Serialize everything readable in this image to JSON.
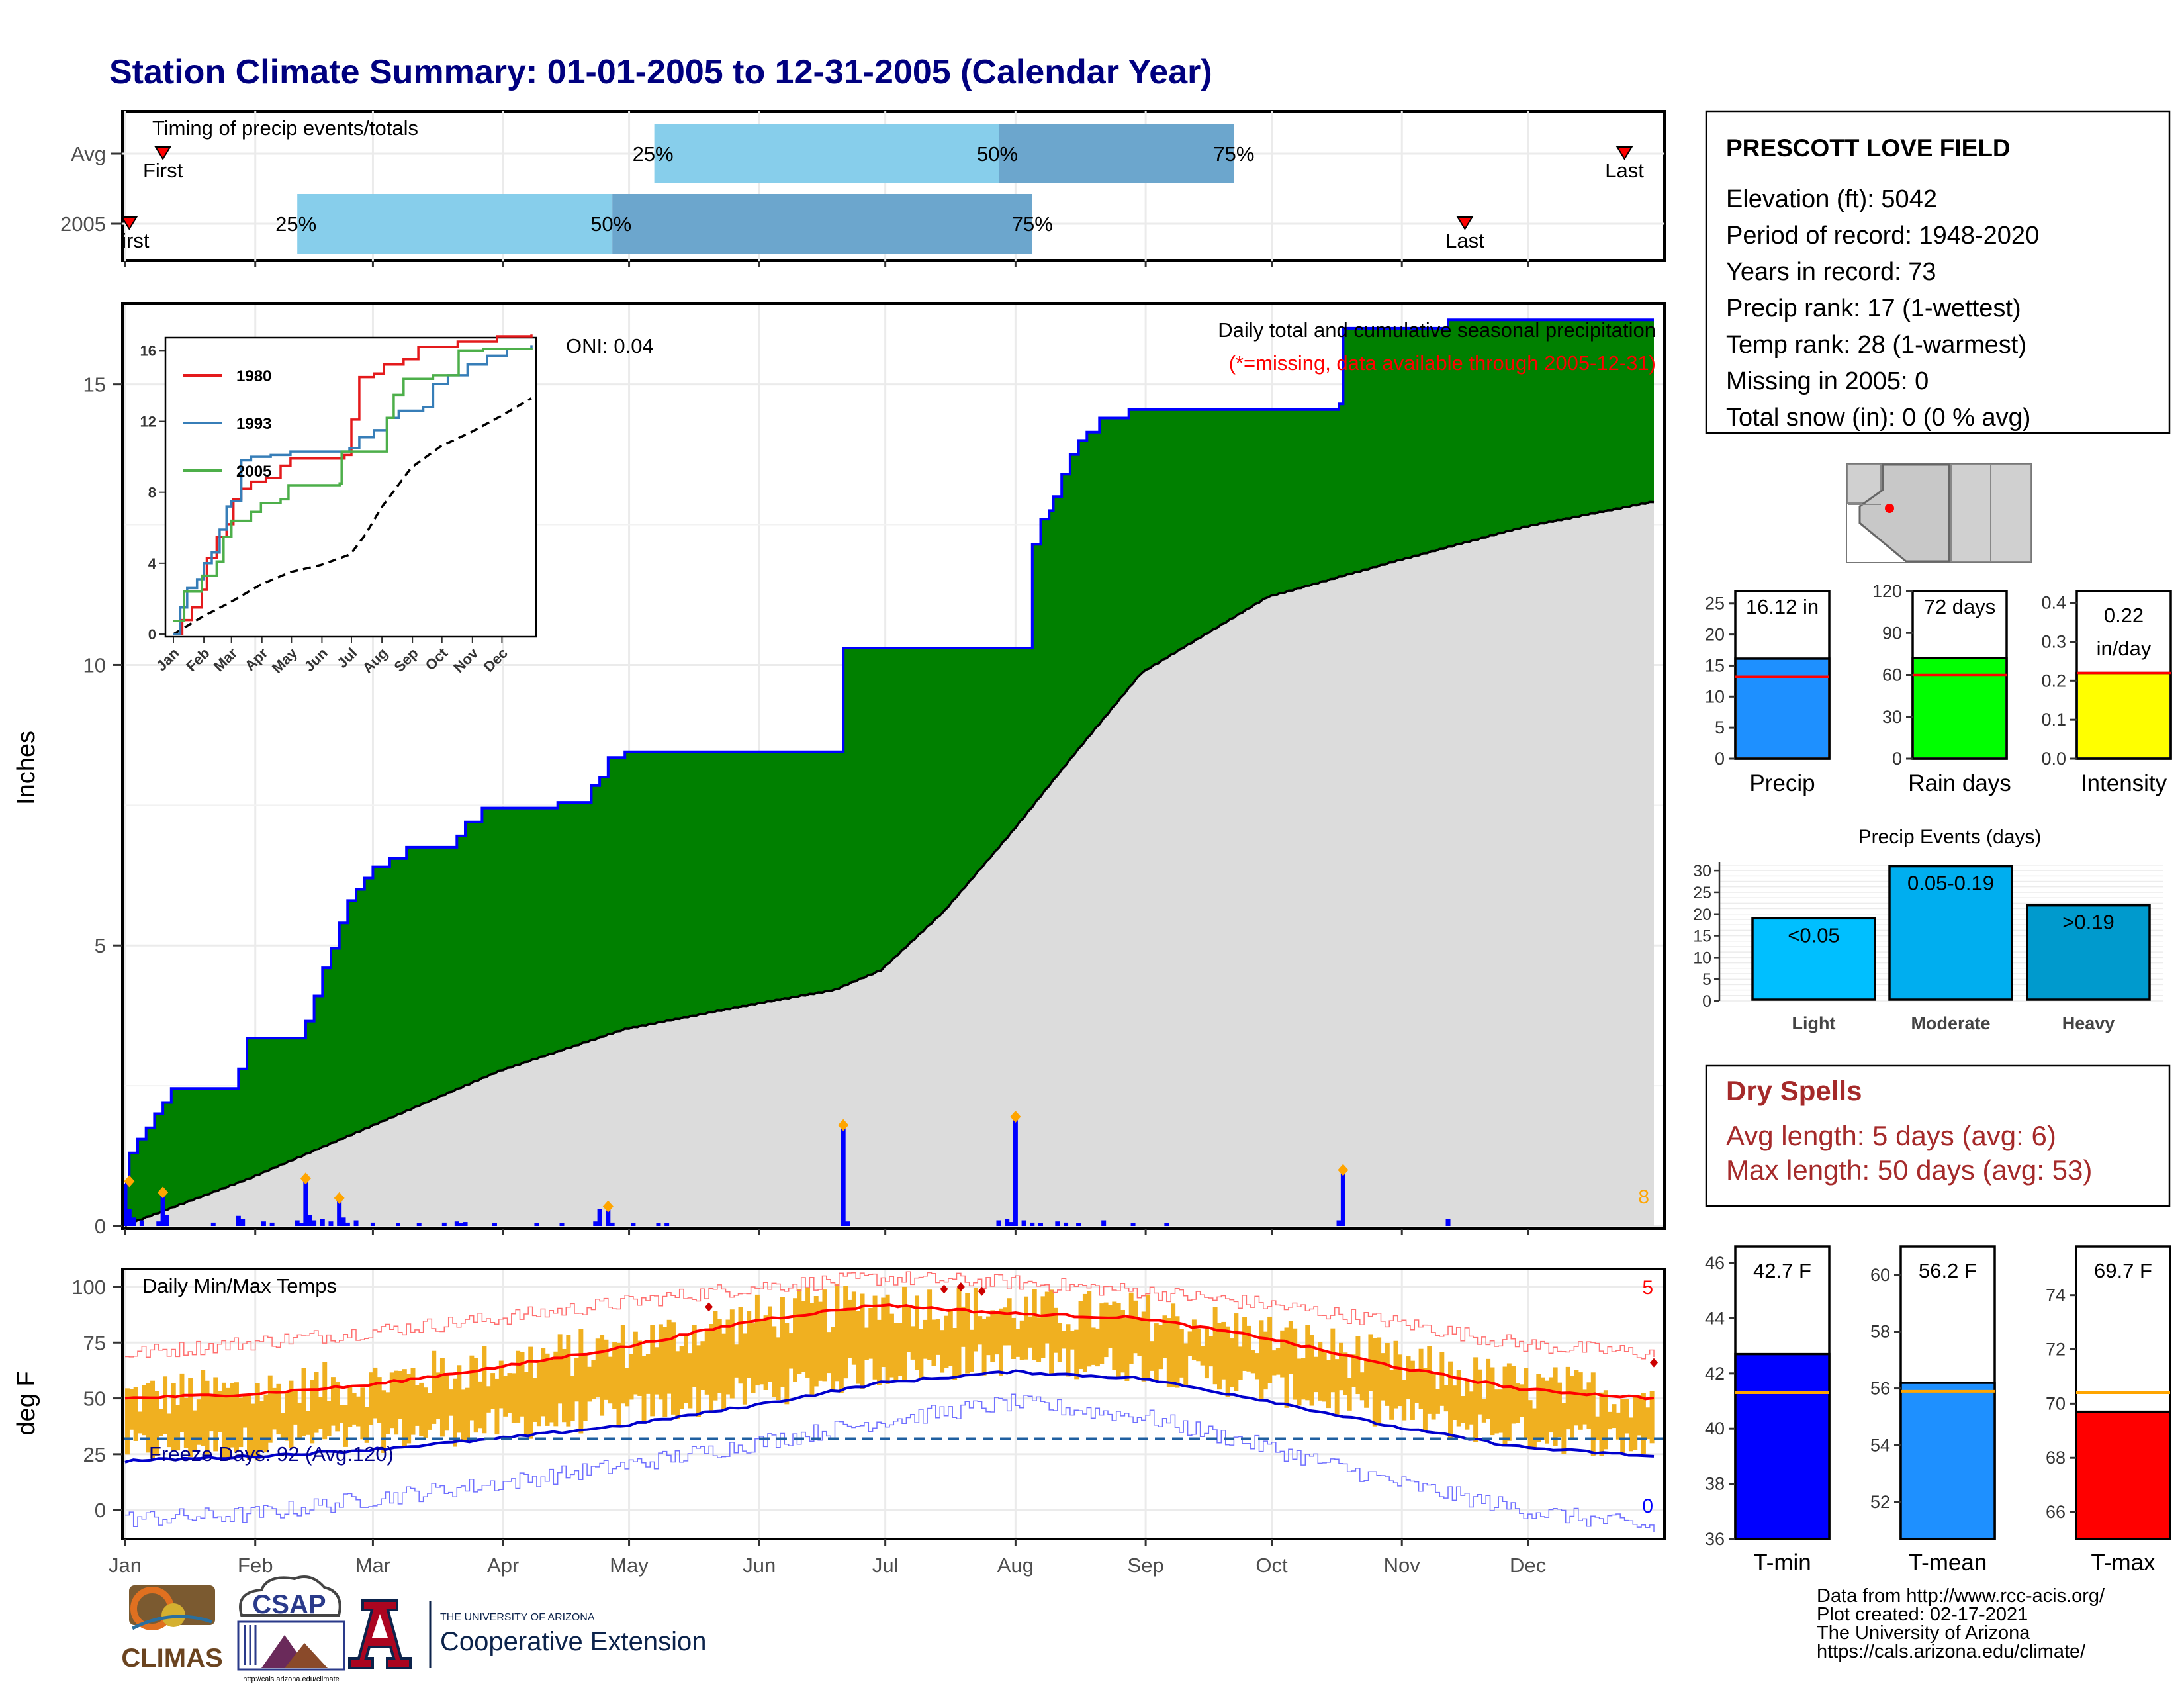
{
  "title": "Station Climate Summary: 01-01-2005 to 12-31-2005 (Calendar Year)",
  "colors": {
    "title": "#00007f",
    "green_fill": "#008000",
    "grey_fill": "#dcdcdc",
    "bar_blue": "#0000ff",
    "light_blue": "#87ceeb",
    "mid_blue": "#6ca6cd",
    "orange": "#ffa500",
    "red": "#ff0000",
    "yellow": "#ffff00",
    "lime": "#00ff00",
    "dodger": "#1e90ff",
    "gold_bars": "#f0b020",
    "dry_red": "#a52a2a"
  },
  "months": [
    "Jan",
    "Feb",
    "Mar",
    "Apr",
    "May",
    "Jun",
    "Jul",
    "Aug",
    "Sep",
    "Oct",
    "Nov",
    "Dec"
  ],
  "timing_panel": {
    "title": "Timing of precip events/totals",
    "rows": [
      {
        "label": "Avg",
        "first_doy": 10,
        "first_label": "First",
        "p25_doy": 127,
        "p50_doy": 209,
        "p75_doy": 265,
        "last_doy": 358,
        "last_label": "Last",
        "p25_label": "25%",
        "p50_label": "50%",
        "p75_label": "75%"
      },
      {
        "label": "2005",
        "first_doy": 2,
        "first_label": "First",
        "p25_doy": 42,
        "p50_doy": 117,
        "p75_doy": 217,
        "last_doy": 320,
        "last_label": "Last",
        "p25_label": "25%",
        "p50_label": "50%",
        "p75_label": "75%"
      }
    ]
  },
  "precip_panel": {
    "ylabel": "Inches",
    "yticks": [
      0,
      5,
      10,
      15
    ],
    "ylim": [
      0,
      16.4
    ],
    "annotation_1": "Daily total and cumulative seasonal precipitation",
    "annotation_2": "(*=missing, data available through 2005-12-31)",
    "oni": "ONI: 0.04",
    "extreme_count": "8"
  },
  "inset": {
    "yticks": [
      0,
      4,
      8,
      12,
      16
    ],
    "ylim": [
      0,
      16.5
    ],
    "month_labels": [
      "Jan",
      "Feb",
      "Mar",
      "Apr",
      "May",
      "Jun",
      "Jul",
      "Aug",
      "Sep",
      "Oct",
      "Nov",
      "Dec"
    ],
    "series": [
      {
        "name": "1980",
        "color": "#e41a1c"
      },
      {
        "name": "1993",
        "color": "#377eb8"
      },
      {
        "name": "2005",
        "color": "#4daf4a"
      }
    ]
  },
  "temp_panel": {
    "title": "Daily Min/Max Temps",
    "ylabel": "deg F",
    "yticks": [
      0,
      25,
      50,
      75,
      100
    ],
    "ylim": [
      -13,
      108
    ],
    "freeze_label": "Freeze Days: 92 (Avg:120)",
    "freeze_line": 32,
    "count_hi": "5",
    "count_lo": "0"
  },
  "station_box": {
    "name": "PRESCOTT LOVE FIELD",
    "lines": [
      "Elevation (ft): 5042",
      "Period of record: 1948-2020",
      "Years in record: 73",
      "Precip rank: 17 (1-wettest)",
      "Temp rank: 28 (1-warmest)",
      "Missing in 2005: 0",
      "Total snow (in): 0 (0 % avg)"
    ]
  },
  "mini_bars": [
    {
      "label": "Precip",
      "value": 16.12,
      "value_text": "16.12 in",
      "avg": 13.2,
      "ylim": [
        0,
        27
      ],
      "yticks": [
        "0",
        "5",
        "10",
        "15",
        "20",
        "25"
      ],
      "tick_vals": [
        0,
        5,
        10,
        15,
        20,
        25
      ],
      "color": "#1e90ff"
    },
    {
      "label": "Rain days",
      "value": 72,
      "value_text": "72 days",
      "avg": 60,
      "ylim": [
        0,
        120
      ],
      "yticks": [
        "0",
        "30",
        "60",
        "90",
        "120"
      ],
      "tick_vals": [
        0,
        30,
        60,
        90,
        120
      ],
      "color": "#00ff00"
    },
    {
      "label": "Intensity",
      "value": 0.22,
      "value_text": "0.22",
      "value_text2": "in/day",
      "avg": 0.22,
      "ylim": [
        0,
        0.43
      ],
      "yticks": [
        "0.0",
        "0.1",
        "0.2",
        "0.3",
        "0.4"
      ],
      "tick_vals": [
        0,
        0.1,
        0.2,
        0.3,
        0.4
      ],
      "color": "#ffff00"
    }
  ],
  "events_chart": {
    "title": "Precip Events (days)",
    "yticks": [
      0,
      5,
      10,
      15,
      20,
      25,
      30
    ],
    "ylim": [
      0,
      32
    ],
    "bars": [
      {
        "category": "Light",
        "label": "<0.05",
        "value": 19,
        "color": "#00bfff"
      },
      {
        "category": "Moderate",
        "label": "0.05-0.19",
        "value": 31,
        "color": "#00aeef"
      },
      {
        "category": "Heavy",
        "label": ">0.19",
        "value": 22,
        "color": "#009acd"
      }
    ]
  },
  "dry_spells": {
    "title": "Dry Spells",
    "line1": "Avg length: 5 days (avg: 6)",
    "line2": "Max length: 50 days (avg: 53)"
  },
  "temp_bars": [
    {
      "label": "T-min",
      "value": 42.7,
      "value_text": "42.7 F",
      "avg": 41.3,
      "ylim": [
        36,
        46.6
      ],
      "tick_vals": [
        36,
        38,
        40,
        42,
        44,
        46
      ],
      "color": "#0000ff"
    },
    {
      "label": "T-mean",
      "value": 56.2,
      "value_text": "56.2 F",
      "avg": 55.9,
      "ylim": [
        50.7,
        61
      ],
      "tick_vals": [
        52,
        54,
        56,
        58,
        60
      ],
      "color": "#1e90ff"
    },
    {
      "label": "T-max",
      "value": 69.7,
      "value_text": "69.7 F",
      "avg": 70.4,
      "ylim": [
        65,
        75.8
      ],
      "tick_vals": [
        66,
        68,
        70,
        72,
        74
      ],
      "color": "#ff0000"
    }
  ],
  "footer": {
    "line1": "Data from http://www.rcc-acis.org/",
    "line2": "Plot created: 02-17-2021",
    "line3": "The University of Arizona",
    "line4": "https://cals.arizona.edu/climate/"
  },
  "logos": {
    "climas": "CLIMAS",
    "csap": "CSAP",
    "csap_url": "http://cals.arizona.edu/climate",
    "ua_small": "THE UNIVERSITY OF ARIZONA",
    "ua_big": "Cooperative Extension"
  },
  "chart_data": [
    {
      "type": "bar",
      "title": "Timing of precip events/totals",
      "categories": [
        "Avg",
        "2005"
      ],
      "series": [
        {
          "name": "First",
          "values": [
            10,
            2
          ]
        },
        {
          "name": "25%",
          "values": [
            127,
            42
          ]
        },
        {
          "name": "50%",
          "values": [
            209,
            117
          ]
        },
        {
          "name": "75%",
          "values": [
            265,
            217
          ]
        },
        {
          "name": "Last",
          "values": [
            358,
            320
          ]
        }
      ]
    },
    {
      "type": "area",
      "title": "Daily total and cumulative seasonal precipitation",
      "ylabel": "Inches",
      "ylim": [
        0,
        16.4
      ],
      "x_unit": "day of year 2005",
      "cumulative_2005": [
        [
          1,
          0.75
        ],
        [
          2,
          1.3
        ],
        [
          4,
          1.55
        ],
        [
          6,
          1.75
        ],
        [
          8,
          2.0
        ],
        [
          10,
          2.2
        ],
        [
          12,
          2.45
        ],
        [
          26,
          2.45
        ],
        [
          28,
          2.8
        ],
        [
          30,
          3.35
        ],
        [
          40,
          3.35
        ],
        [
          44,
          3.65
        ],
        [
          46,
          4.1
        ],
        [
          48,
          4.6
        ],
        [
          50,
          4.95
        ],
        [
          52,
          5.4
        ],
        [
          54,
          5.8
        ],
        [
          56,
          6.0
        ],
        [
          58,
          6.2
        ],
        [
          60,
          6.4
        ],
        [
          64,
          6.55
        ],
        [
          68,
          6.75
        ],
        [
          76,
          6.75
        ],
        [
          80,
          6.95
        ],
        [
          82,
          7.2
        ],
        [
          86,
          7.45
        ],
        [
          100,
          7.45
        ],
        [
          104,
          7.55
        ],
        [
          110,
          7.55
        ],
        [
          112,
          7.85
        ],
        [
          114,
          8.0
        ],
        [
          116,
          8.35
        ],
        [
          120,
          8.45
        ],
        [
          170,
          8.45
        ],
        [
          172,
          10.3
        ],
        [
          216,
          10.3
        ],
        [
          217,
          12.15
        ],
        [
          219,
          12.6
        ],
        [
          221,
          12.75
        ],
        [
          222,
          13.0
        ],
        [
          224,
          13.4
        ],
        [
          226,
          13.75
        ],
        [
          228,
          14.0
        ],
        [
          230,
          14.15
        ],
        [
          233,
          14.4
        ],
        [
          240,
          14.55
        ],
        [
          265,
          14.55
        ],
        [
          290,
          14.65
        ],
        [
          291,
          16.0
        ],
        [
          315,
          16.0
        ],
        [
          316,
          16.15
        ],
        [
          365,
          16.15
        ]
      ],
      "average_cumulative": [
        [
          1,
          0.0
        ],
        [
          31,
          0.85
        ],
        [
          59,
          1.75
        ],
        [
          90,
          2.75
        ],
        [
          120,
          3.5
        ],
        [
          151,
          3.95
        ],
        [
          170,
          4.2
        ],
        [
          181,
          4.55
        ],
        [
          196,
          5.6
        ],
        [
          212,
          7.0
        ],
        [
          227,
          8.4
        ],
        [
          243,
          9.85
        ],
        [
          273,
          11.2
        ],
        [
          304,
          11.85
        ],
        [
          334,
          12.45
        ],
        [
          365,
          12.9
        ]
      ],
      "daily_notable": [
        {
          "x": 2,
          "y": 0.75
        },
        {
          "x": 10,
          "y": 0.55
        },
        {
          "x": 44,
          "y": 0.8
        },
        {
          "x": 52,
          "y": 0.45
        },
        {
          "x": 116,
          "y": 0.3
        },
        {
          "x": 172,
          "y": 1.75
        },
        {
          "x": 213,
          "y": 1.9
        },
        {
          "x": 291,
          "y": 0.95
        }
      ]
    },
    {
      "type": "line",
      "title": "Daily Min/Max Temps",
      "ylabel": "deg F",
      "ylim": [
        -13,
        108
      ],
      "x_unit": "day of year 2005",
      "series": [
        {
          "name": "avg max",
          "points": [
            [
              1,
              50
            ],
            [
              31,
              52
            ],
            [
              59,
              56
            ],
            [
              90,
              64
            ],
            [
              120,
              73
            ],
            [
              151,
              85
            ],
            [
              181,
              92
            ],
            [
              212,
              88
            ],
            [
              243,
              86
            ],
            [
              273,
              77
            ],
            [
              304,
              64
            ],
            [
              334,
              54
            ],
            [
              365,
              50
            ]
          ]
        },
        {
          "name": "avg min",
          "points": [
            [
              1,
              22
            ],
            [
              31,
              24
            ],
            [
              59,
              27
            ],
            [
              90,
              32
            ],
            [
              120,
              38
            ],
            [
              151,
              47
            ],
            [
              181,
              57
            ],
            [
              212,
              62
            ],
            [
              243,
              59
            ],
            [
              273,
              49
            ],
            [
              304,
              37
            ],
            [
              334,
              28
            ],
            [
              365,
              24
            ]
          ]
        },
        {
          "name": "record max",
          "points": [
            [
              1,
              70
            ],
            [
              31,
              75
            ],
            [
              59,
              80
            ],
            [
              90,
              86
            ],
            [
              120,
              93
            ],
            [
              151,
              100
            ],
            [
              181,
              104
            ],
            [
              212,
              102
            ],
            [
              243,
              98
            ],
            [
              273,
              92
            ],
            [
              304,
              84
            ],
            [
              334,
              74
            ],
            [
              365,
              70
            ]
          ]
        },
        {
          "name": "record min",
          "points": [
            [
              1,
              -4
            ],
            [
              31,
              -2
            ],
            [
              59,
              5
            ],
            [
              90,
              12
            ],
            [
              120,
              20
            ],
            [
              151,
              30
            ],
            [
              181,
              40
            ],
            [
              212,
              48
            ],
            [
              243,
              42
            ],
            [
              273,
              28
            ],
            [
              304,
              12
            ],
            [
              334,
              0
            ],
            [
              365,
              -8
            ]
          ]
        }
      ]
    },
    {
      "type": "bar",
      "categories": [
        "Precip",
        "Rain days",
        "Intensity"
      ],
      "values": [
        16.12,
        72,
        0.22
      ]
    },
    {
      "type": "bar",
      "title": "Precip Events (days)",
      "categories": [
        "Light",
        "Moderate",
        "Heavy"
      ],
      "values": [
        19,
        31,
        22
      ]
    },
    {
      "type": "bar",
      "categories": [
        "T-min",
        "T-mean",
        "T-max"
      ],
      "values": [
        42.7,
        56.2,
        69.7
      ]
    }
  ]
}
